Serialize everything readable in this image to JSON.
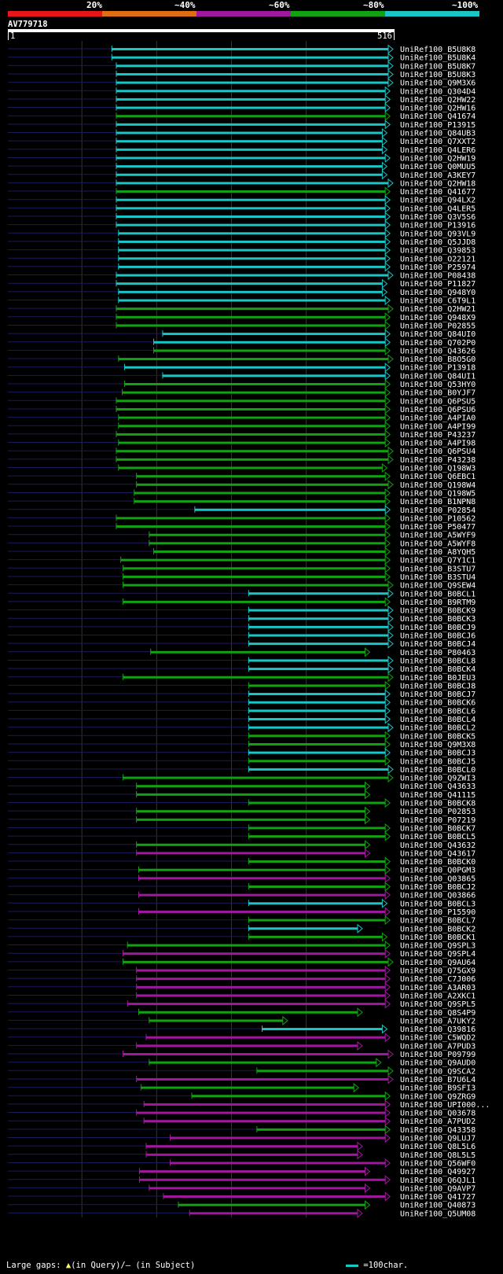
{
  "query": {
    "name": "AV779718",
    "start_label": "1",
    "end_label": "516",
    "length": 516
  },
  "color_scale": [
    {
      "label": "20%",
      "color": "#e8151a"
    },
    {
      "label": "~40%",
      "color": "#e06c14"
    },
    {
      "label": "~60%",
      "color": "#a0189e"
    },
    {
      "label": "~80%",
      "color": "#12a112"
    },
    {
      "label": "~100%",
      "color": "#19c6c6"
    }
  ],
  "legend": {
    "large_gaps_prefix": "Large gaps:",
    "in_query_text": "(in Query)/",
    "in_subject_text": "(in Subject)",
    "scale_text": "=100char.",
    "scale_char_length": 100
  },
  "chart_data": {
    "type": "alignment_overview",
    "title": "",
    "x_unit": "query residue",
    "xlim": [
      1,
      516
    ],
    "grid_positions": [
      100,
      200,
      300,
      400
    ],
    "hits": [
      {
        "id": "UniRef100_B5U8K8",
        "start": 140,
        "end": 516,
        "identity": "~100%"
      },
      {
        "id": "UniRef100_B5U8K4",
        "start": 140,
        "end": 516,
        "identity": "~100%"
      },
      {
        "id": "UniRef100_B5U8K7",
        "start": 146,
        "end": 516,
        "identity": "~100%"
      },
      {
        "id": "UniRef100_B5U8K3",
        "start": 146,
        "end": 516,
        "identity": "~100%"
      },
      {
        "id": "UniRef100_Q9M3X6",
        "start": 146,
        "end": 516,
        "identity": "~100%"
      },
      {
        "id": "UniRef100_Q304D4",
        "start": 146,
        "end": 512,
        "identity": "~100%"
      },
      {
        "id": "UniRef100_Q2HW22",
        "start": 146,
        "end": 512,
        "identity": "~100%"
      },
      {
        "id": "UniRef100_Q2HW16",
        "start": 146,
        "end": 512,
        "identity": "~100%"
      },
      {
        "id": "UniRef100_Q41674",
        "start": 146,
        "end": 512,
        "identity": "~80%"
      },
      {
        "id": "UniRef100_P13915",
        "start": 146,
        "end": 512,
        "identity": "~100%"
      },
      {
        "id": "UniRef100_Q84UB3",
        "start": 146,
        "end": 508,
        "identity": "~100%"
      },
      {
        "id": "UniRef100_Q7XXT2",
        "start": 146,
        "end": 508,
        "identity": "~100%"
      },
      {
        "id": "UniRef100_Q4LER6",
        "start": 146,
        "end": 508,
        "identity": "~100%"
      },
      {
        "id": "UniRef100_Q2HW19",
        "start": 146,
        "end": 512,
        "identity": "~100%"
      },
      {
        "id": "UniRef100_Q0MUU5",
        "start": 146,
        "end": 508,
        "identity": "~100%"
      },
      {
        "id": "UniRef100_A3KEY7",
        "start": 146,
        "end": 508,
        "identity": "~100%"
      },
      {
        "id": "UniRef100_Q2HW18",
        "start": 146,
        "end": 516,
        "identity": "~100%"
      },
      {
        "id": "UniRef100_Q41677",
        "start": 146,
        "end": 512,
        "identity": "~80%"
      },
      {
        "id": "UniRef100_Q94LX2",
        "start": 146,
        "end": 512,
        "identity": "~100%"
      },
      {
        "id": "UniRef100_Q4LER5",
        "start": 146,
        "end": 512,
        "identity": "~100%"
      },
      {
        "id": "UniRef100_Q3V5S6",
        "start": 146,
        "end": 512,
        "identity": "~100%"
      },
      {
        "id": "UniRef100_P13916",
        "start": 146,
        "end": 512,
        "identity": "~100%"
      },
      {
        "id": "UniRef100_Q93VL9",
        "start": 149,
        "end": 512,
        "identity": "~100%"
      },
      {
        "id": "UniRef100_Q5JJD8",
        "start": 149,
        "end": 512,
        "identity": "~100%"
      },
      {
        "id": "UniRef100_Q39853",
        "start": 149,
        "end": 512,
        "identity": "~100%"
      },
      {
        "id": "UniRef100_O22121",
        "start": 149,
        "end": 512,
        "identity": "~100%"
      },
      {
        "id": "UniRef100_P25974",
        "start": 149,
        "end": 512,
        "identity": "~100%"
      },
      {
        "id": "UniRef100_P08438",
        "start": 146,
        "end": 516,
        "identity": "~100%"
      },
      {
        "id": "UniRef100_P11827",
        "start": 146,
        "end": 508,
        "identity": "~100%"
      },
      {
        "id": "UniRef100_Q948Y0",
        "start": 149,
        "end": 508,
        "identity": "~100%"
      },
      {
        "id": "UniRef100_C6T9L1",
        "start": 149,
        "end": 512,
        "identity": "~100%"
      },
      {
        "id": "UniRef100_Q2HW21",
        "start": 146,
        "end": 516,
        "identity": "~80%"
      },
      {
        "id": "UniRef100_Q948X9",
        "start": 146,
        "end": 512,
        "identity": "~80%"
      },
      {
        "id": "UniRef100_P02855",
        "start": 146,
        "end": 512,
        "identity": "~80%"
      },
      {
        "id": "UniRef100_Q84UI0",
        "start": 208,
        "end": 512,
        "identity": "~100%"
      },
      {
        "id": "UniRef100_Q702P0",
        "start": 196,
        "end": 512,
        "identity": "~100%"
      },
      {
        "id": "UniRef100_Q43626",
        "start": 196,
        "end": 512,
        "identity": "~80%"
      },
      {
        "id": "UniRef100_B8O5G0",
        "start": 149,
        "end": 516,
        "identity": "~80%"
      },
      {
        "id": "UniRef100_P13918",
        "start": 157,
        "end": 512,
        "identity": "~100%"
      },
      {
        "id": "UniRef100_Q84UI1",
        "start": 208,
        "end": 512,
        "identity": "~100%"
      },
      {
        "id": "UniRef100_Q53HY0",
        "start": 157,
        "end": 512,
        "identity": "~80%"
      },
      {
        "id": "UniRef100_B0YJF7",
        "start": 154,
        "end": 512,
        "identity": "~80%"
      },
      {
        "id": "UniRef100_Q6PSU5",
        "start": 146,
        "end": 512,
        "identity": "~80%"
      },
      {
        "id": "UniRef100_Q6PSU6",
        "start": 146,
        "end": 512,
        "identity": "~80%"
      },
      {
        "id": "UniRef100_A4PIA0",
        "start": 149,
        "end": 512,
        "identity": "~80%"
      },
      {
        "id": "UniRef100_A4PI99",
        "start": 149,
        "end": 512,
        "identity": "~80%"
      },
      {
        "id": "UniRef100_P43237",
        "start": 146,
        "end": 512,
        "identity": "~80%"
      },
      {
        "id": "UniRef100_A4PI98",
        "start": 149,
        "end": 512,
        "identity": "~80%"
      },
      {
        "id": "UniRef100_Q6PSU4",
        "start": 146,
        "end": 516,
        "identity": "~80%"
      },
      {
        "id": "UniRef100_P43238",
        "start": 146,
        "end": 516,
        "identity": "~80%"
      },
      {
        "id": "UniRef100_Q198W3",
        "start": 149,
        "end": 508,
        "identity": "~80%"
      },
      {
        "id": "UniRef100_Q6EBC1",
        "start": 173,
        "end": 512,
        "identity": "~80%"
      },
      {
        "id": "UniRef100_Q198W4",
        "start": 173,
        "end": 516,
        "identity": "~80%"
      },
      {
        "id": "UniRef100_Q198W5",
        "start": 170,
        "end": 512,
        "identity": "~80%"
      },
      {
        "id": "UniRef100_B1NPN8",
        "start": 170,
        "end": 512,
        "identity": "~80%"
      },
      {
        "id": "UniRef100_P02854",
        "start": 251,
        "end": 512,
        "identity": "~100%"
      },
      {
        "id": "UniRef100_P10562",
        "start": 146,
        "end": 512,
        "identity": "~80%"
      },
      {
        "id": "UniRef100_P50477",
        "start": 146,
        "end": 512,
        "identity": "~80%"
      },
      {
        "id": "UniRef100_A5WYF9",
        "start": 190,
        "end": 512,
        "identity": "~80%"
      },
      {
        "id": "UniRef100_A5WYF8",
        "start": 190,
        "end": 512,
        "identity": "~80%"
      },
      {
        "id": "UniRef100_A8YQH5",
        "start": 196,
        "end": 512,
        "identity": "~80%"
      },
      {
        "id": "UniRef100_Q7Y1C1",
        "start": 152,
        "end": 512,
        "identity": "~80%"
      },
      {
        "id": "UniRef100_B3STU7",
        "start": 155,
        "end": 512,
        "identity": "~80%"
      },
      {
        "id": "UniRef100_B3STU4",
        "start": 155,
        "end": 512,
        "identity": "~80%"
      },
      {
        "id": "UniRef100_Q9SEW4",
        "start": 155,
        "end": 516,
        "identity": "~80%"
      },
      {
        "id": "UniRef100_B0BCL1",
        "start": 323,
        "end": 516,
        "identity": "~100%"
      },
      {
        "id": "UniRef100_B9RTM9",
        "start": 155,
        "end": 512,
        "identity": "~80%"
      },
      {
        "id": "UniRef100_B0BCK9",
        "start": 323,
        "end": 516,
        "identity": "~100%"
      },
      {
        "id": "UniRef100_B0BCK3",
        "start": 323,
        "end": 516,
        "identity": "~100%"
      },
      {
        "id": "UniRef100_B0BCJ9",
        "start": 323,
        "end": 516,
        "identity": "~100%"
      },
      {
        "id": "UniRef100_B0BCJ6",
        "start": 323,
        "end": 516,
        "identity": "~100%"
      },
      {
        "id": "UniRef100_B0BCJ4",
        "start": 323,
        "end": 516,
        "identity": "~100%"
      },
      {
        "id": "UniRef100_P80463",
        "start": 192,
        "end": 485,
        "identity": "~80%"
      },
      {
        "id": "UniRef100_B0BCL8",
        "start": 323,
        "end": 516,
        "identity": "~100%"
      },
      {
        "id": "UniRef100_B0BCK4",
        "start": 323,
        "end": 516,
        "identity": "~100%"
      },
      {
        "id": "UniRef100_B0JEU3",
        "start": 155,
        "end": 516,
        "identity": "~80%"
      },
      {
        "id": "UniRef100_B0BCJ8",
        "start": 323,
        "end": 512,
        "identity": "~80%"
      },
      {
        "id": "UniRef100_B0BCJ7",
        "start": 323,
        "end": 512,
        "identity": "~100%"
      },
      {
        "id": "UniRef100_B0BCK6",
        "start": 323,
        "end": 512,
        "identity": "~100%"
      },
      {
        "id": "UniRef100_B0BCL6",
        "start": 323,
        "end": 512,
        "identity": "~100%"
      },
      {
        "id": "UniRef100_B0BCL4",
        "start": 323,
        "end": 512,
        "identity": "~100%"
      },
      {
        "id": "UniRef100_B0BCL2",
        "start": 323,
        "end": 516,
        "identity": "~100%"
      },
      {
        "id": "UniRef100_B0BCK5",
        "start": 323,
        "end": 512,
        "identity": "~80%"
      },
      {
        "id": "UniRef100_Q9M3X8",
        "start": 323,
        "end": 512,
        "identity": "~80%"
      },
      {
        "id": "UniRef100_B0BCJ3",
        "start": 323,
        "end": 512,
        "identity": "~100%"
      },
      {
        "id": "UniRef100_B0BCJ5",
        "start": 323,
        "end": 512,
        "identity": "~80%"
      },
      {
        "id": "UniRef100_B0BCL0",
        "start": 323,
        "end": 516,
        "identity": "~100%"
      },
      {
        "id": "UniRef100_Q9ZWI3",
        "start": 155,
        "end": 516,
        "identity": "~80%"
      },
      {
        "id": "UniRef100_Q43633",
        "start": 173,
        "end": 485,
        "identity": "~80%"
      },
      {
        "id": "UniRef100_Q41115",
        "start": 173,
        "end": 485,
        "identity": "~80%"
      },
      {
        "id": "UniRef100_B0BCK8",
        "start": 323,
        "end": 512,
        "identity": "~80%"
      },
      {
        "id": "UniRef100_P02853",
        "start": 173,
        "end": 485,
        "identity": "~80%"
      },
      {
        "id": "UniRef100_P07219",
        "start": 173,
        "end": 485,
        "identity": "~80%"
      },
      {
        "id": "UniRef100_B0BCK7",
        "start": 323,
        "end": 512,
        "identity": "~80%"
      },
      {
        "id": "UniRef100_B0BCL5",
        "start": 323,
        "end": 512,
        "identity": "~80%"
      },
      {
        "id": "UniRef100_Q43632",
        "start": 173,
        "end": 485,
        "identity": "~80%"
      },
      {
        "id": "UniRef100_Q43617",
        "start": 173,
        "end": 485,
        "identity": "~60%"
      },
      {
        "id": "UniRef100_B0BCK0",
        "start": 323,
        "end": 512,
        "identity": "~80%"
      },
      {
        "id": "UniRef100_Q0PGM3",
        "start": 176,
        "end": 512,
        "identity": "~80%"
      },
      {
        "id": "UniRef100_Q03865",
        "start": 176,
        "end": 512,
        "identity": "~60%"
      },
      {
        "id": "UniRef100_B0BCJ2",
        "start": 323,
        "end": 512,
        "identity": "~80%"
      },
      {
        "id": "UniRef100_Q03866",
        "start": 176,
        "end": 512,
        "identity": "~60%"
      },
      {
        "id": "UniRef100_B0BCL3",
        "start": 323,
        "end": 508,
        "identity": "~100%"
      },
      {
        "id": "UniRef100_P15590",
        "start": 176,
        "end": 512,
        "identity": "~60%"
      },
      {
        "id": "UniRef100_B0BCL7",
        "start": 323,
        "end": 512,
        "identity": "~80%"
      },
      {
        "id": "UniRef100_B0BCK2",
        "start": 323,
        "end": 475,
        "identity": "~100%"
      },
      {
        "id": "UniRef100_B0BCK1",
        "start": 323,
        "end": 508,
        "identity": "~80%"
      },
      {
        "id": "UniRef100_Q9SPL3",
        "start": 161,
        "end": 512,
        "identity": "~80%"
      },
      {
        "id": "UniRef100_Q9SPL4",
        "start": 155,
        "end": 512,
        "identity": "~60%"
      },
      {
        "id": "UniRef100_Q9AU64",
        "start": 155,
        "end": 516,
        "identity": "~80%"
      },
      {
        "id": "UniRef100_Q75GX9",
        "start": 173,
        "end": 512,
        "identity": "~60%"
      },
      {
        "id": "UniRef100_C7J006",
        "start": 173,
        "end": 512,
        "identity": "~60%"
      },
      {
        "id": "UniRef100_A3AR03",
        "start": 173,
        "end": 512,
        "identity": "~60%"
      },
      {
        "id": "UniRef100_A2XKC1",
        "start": 173,
        "end": 512,
        "identity": "~60%"
      },
      {
        "id": "UniRef100_Q9SPL5",
        "start": 161,
        "end": 512,
        "identity": "~60%"
      },
      {
        "id": "UniRef100_Q8S4P9",
        "start": 176,
        "end": 475,
        "identity": "~80%"
      },
      {
        "id": "UniRef100_A7UKY2",
        "start": 190,
        "end": 375,
        "identity": "~80%"
      },
      {
        "id": "UniRef100_Q39816",
        "start": 341,
        "end": 508,
        "identity": "~100%"
      },
      {
        "id": "UniRef100_C5WQD2",
        "start": 186,
        "end": 512,
        "identity": "~60%"
      },
      {
        "id": "UniRef100_A7PUD3",
        "start": 173,
        "end": 475,
        "identity": "~60%"
      },
      {
        "id": "UniRef100_P09799",
        "start": 155,
        "end": 516,
        "identity": "~60%"
      },
      {
        "id": "UniRef100_Q9AUD0",
        "start": 190,
        "end": 500,
        "identity": "~80%"
      },
      {
        "id": "UniRef100_Q9SCA2",
        "start": 334,
        "end": 516,
        "identity": "~80%"
      },
      {
        "id": "UniRef100_B7U6L4",
        "start": 173,
        "end": 516,
        "identity": "~60%"
      },
      {
        "id": "UniRef100_B9SFI3",
        "start": 179,
        "end": 470,
        "identity": "~80%"
      },
      {
        "id": "UniRef100_Q9ZRG9",
        "start": 247,
        "end": 512,
        "identity": "~80%"
      },
      {
        "id": "UniRef100_UPI000...",
        "start": 183,
        "end": 512,
        "identity": "~60%"
      },
      {
        "id": "UniRef100_Q03678",
        "start": 173,
        "end": 512,
        "identity": "~60%"
      },
      {
        "id": "UniRef100_A7PUD2",
        "start": 183,
        "end": 512,
        "identity": "~60%"
      },
      {
        "id": "UniRef100_Q43358",
        "start": 334,
        "end": 512,
        "identity": "~80%"
      },
      {
        "id": "UniRef100_Q9LUJ7",
        "start": 218,
        "end": 512,
        "identity": "~60%"
      },
      {
        "id": "UniRef100_Q8L5L6",
        "start": 186,
        "end": 475,
        "identity": "~60%"
      },
      {
        "id": "UniRef100_Q8L5L5",
        "start": 186,
        "end": 475,
        "identity": "~60%"
      },
      {
        "id": "UniRef100_Q56WF0",
        "start": 218,
        "end": 512,
        "identity": "~60%"
      },
      {
        "id": "UniRef100_Q49927",
        "start": 177,
        "end": 485,
        "identity": "~60%"
      },
      {
        "id": "UniRef100_Q6QJL1",
        "start": 177,
        "end": 512,
        "identity": "~60%"
      },
      {
        "id": "UniRef100_Q9AVP7",
        "start": 190,
        "end": 485,
        "identity": "~60%"
      },
      {
        "id": "UniRef100_Q41727",
        "start": 209,
        "end": 512,
        "identity": "~60%"
      },
      {
        "id": "UniRef100_Q40873",
        "start": 229,
        "end": 485,
        "identity": "~80%"
      },
      {
        "id": "UniRef100_Q5UM08",
        "start": 244,
        "end": 475,
        "identity": "~60%"
      }
    ]
  }
}
